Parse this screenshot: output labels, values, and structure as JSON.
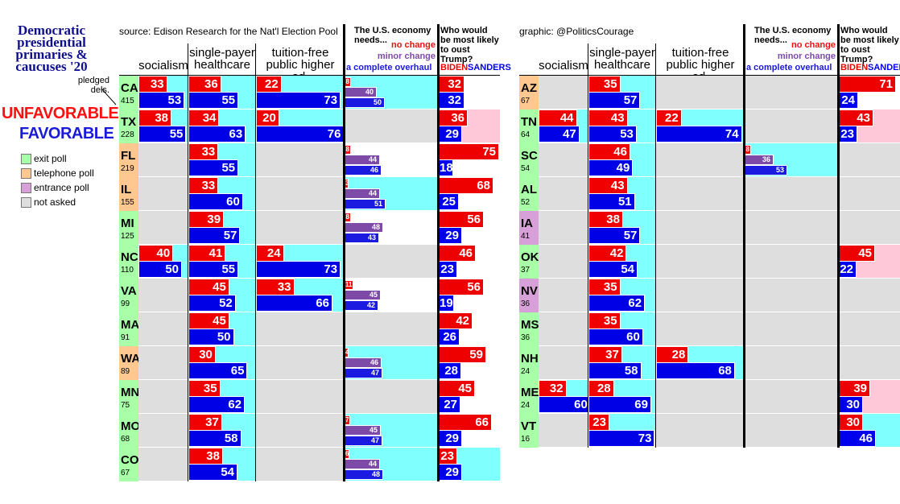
{
  "title": [
    "Democratic",
    "presidential",
    "primaries &",
    "caucuses '20"
  ],
  "pledged_label": [
    "pledged",
    "dels."
  ],
  "legend": {
    "unfavorable": "UNFAVORABLE",
    "favorable": "FAVORABLE",
    "items": [
      {
        "label": "exit poll",
        "color": "#a8ffa8"
      },
      {
        "label": "telephone poll",
        "color": "#ffc890"
      },
      {
        "label": "entrance poll",
        "color": "#d8a0d8"
      },
      {
        "label": "not asked",
        "color": "#dedede"
      }
    ]
  },
  "source": "source: Edison Research for the Nat'l Election Pool",
  "credit": "graphic: @PoliticsCourage",
  "columns": [
    "socialism",
    "single-payer healthcare",
    "tuition-free public higher ed."
  ],
  "economy_header": {
    "question": "The U.S. economy needs...",
    "no_change": "no change",
    "minor_change": "minor change",
    "overhaul": "a complete overhaul"
  },
  "trump_header": {
    "question": "Who would be most likely to oust Trump?",
    "biden": "BIDEN",
    "sanders": "SANDERS"
  },
  "colors": {
    "unfavorable": "#f00000",
    "favorable": "#0000e6",
    "no_change": "#ee1111",
    "minor_change": "#7e4aa8",
    "overhaul": "#1a1ae0",
    "biden": "#ee0000",
    "sanders": "#0000ee",
    "exit": "#a8ffa8",
    "telephone": "#ffc890",
    "entrance": "#d8a0d8",
    "not_asked": "#dedede",
    "cyan": "#80ffff",
    "pink": "#ffc8d8",
    "white": "#ffffff"
  },
  "chart_data": {
    "type": "bar",
    "title": "Democratic presidential primaries & caucuses '20",
    "units": "percent",
    "scale_max": 100,
    "states": [
      {
        "code": "CA",
        "dels": "415",
        "poll": "exit",
        "socialism": [
          33,
          53
        ],
        "healthcare": [
          36,
          55
        ],
        "tuition": [
          22,
          73
        ],
        "economy": [
          8,
          40,
          50
        ],
        "trump": [
          32,
          32
        ],
        "bg": [
          "cyan",
          "cyan",
          "cyan",
          "cyan",
          "white"
        ]
      },
      {
        "code": "TX",
        "dels": "228",
        "poll": "exit",
        "socialism": [
          38,
          55
        ],
        "healthcare": [
          34,
          63
        ],
        "tuition": [
          20,
          76
        ],
        "economy": null,
        "trump": [
          36,
          29
        ],
        "bg": [
          "cyan",
          "cyan",
          "cyan",
          "gray",
          "pink"
        ]
      },
      {
        "code": "FL",
        "dels": "219",
        "poll": "telephone",
        "socialism": null,
        "healthcare": [
          33,
          55
        ],
        "tuition": null,
        "economy": [
          8,
          44,
          46
        ],
        "trump": [
          75,
          18
        ],
        "bg": [
          "gray",
          "cyan",
          "gray",
          "white",
          "white"
        ]
      },
      {
        "code": "IL",
        "dels": "155",
        "poll": "telephone",
        "socialism": null,
        "healthcare": [
          33,
          60
        ],
        "tuition": null,
        "economy": [
          3,
          44,
          51
        ],
        "trump": [
          68,
          25
        ],
        "bg": [
          "gray",
          "cyan",
          "gray",
          "cyan",
          "white"
        ]
      },
      {
        "code": "MI",
        "dels": "125",
        "poll": "exit",
        "socialism": null,
        "healthcare": [
          39,
          57
        ],
        "tuition": null,
        "economy": [
          8,
          48,
          43
        ],
        "trump": [
          56,
          29
        ],
        "bg": [
          "gray",
          "cyan",
          "gray",
          "white",
          "white"
        ]
      },
      {
        "code": "NC",
        "dels": "110",
        "poll": "exit",
        "socialism": [
          40,
          50
        ],
        "healthcare": [
          41,
          55
        ],
        "tuition": [
          24,
          73
        ],
        "economy": null,
        "trump": [
          46,
          23
        ],
        "bg": [
          "cyan",
          "cyan",
          "cyan",
          "gray",
          "white"
        ]
      },
      {
        "code": "VA",
        "dels": "99",
        "poll": "exit",
        "socialism": null,
        "healthcare": [
          45,
          52
        ],
        "tuition": [
          33,
          66
        ],
        "economy": [
          11,
          45,
          42
        ],
        "trump": [
          56,
          19
        ],
        "bg": [
          "gray",
          "cyan",
          "cyan",
          "white",
          "white"
        ]
      },
      {
        "code": "MA",
        "dels": "91",
        "poll": "exit",
        "socialism": null,
        "healthcare": [
          45,
          50
        ],
        "tuition": null,
        "economy": null,
        "trump": [
          42,
          26
        ],
        "bg": [
          "gray",
          "cyan",
          "gray",
          "gray",
          "white"
        ]
      },
      {
        "code": "WA",
        "dels": "89",
        "poll": "telephone",
        "socialism": null,
        "healthcare": [
          30,
          65
        ],
        "tuition": null,
        "economy": [
          4,
          46,
          47
        ],
        "trump": [
          59,
          28
        ],
        "bg": [
          "gray",
          "cyan",
          "gray",
          "cyan",
          "white"
        ]
      },
      {
        "code": "MN",
        "dels": "75",
        "poll": "exit",
        "socialism": null,
        "healthcare": [
          35,
          62
        ],
        "tuition": null,
        "economy": null,
        "trump": [
          45,
          27
        ],
        "bg": [
          "gray",
          "cyan",
          "gray",
          "gray",
          "white"
        ]
      },
      {
        "code": "MO",
        "dels": "68",
        "poll": "exit",
        "socialism": null,
        "healthcare": [
          37,
          58
        ],
        "tuition": null,
        "economy": [
          7,
          45,
          47
        ],
        "trump": [
          66,
          29
        ],
        "bg": [
          "gray",
          "cyan",
          "gray",
          "cyan",
          "white"
        ]
      },
      {
        "code": "CO",
        "dels": "67",
        "poll": "exit",
        "socialism": null,
        "healthcare": [
          38,
          54
        ],
        "tuition": null,
        "economy": [
          6,
          44,
          48
        ],
        "trump": [
          23,
          29
        ],
        "bg": [
          "gray",
          "cyan",
          "gray",
          "cyan",
          "cyan"
        ]
      },
      {
        "code": "AZ",
        "dels": "67",
        "poll": "telephone",
        "socialism": null,
        "healthcare": [
          35,
          57
        ],
        "tuition": null,
        "economy": null,
        "trump": [
          71,
          24
        ],
        "bg": [
          "gray",
          "cyan",
          "gray",
          "gray",
          "white"
        ]
      },
      {
        "code": "TN",
        "dels": "64",
        "poll": "exit",
        "socialism": [
          44,
          47
        ],
        "healthcare": [
          43,
          53
        ],
        "tuition": [
          22,
          74
        ],
        "economy": null,
        "trump": [
          43,
          23
        ],
        "bg": [
          "cyan",
          "cyan",
          "cyan",
          "gray",
          "pink"
        ]
      },
      {
        "code": "SC",
        "dels": "54",
        "poll": "exit",
        "socialism": null,
        "healthcare": [
          46,
          49
        ],
        "tuition": null,
        "economy": [
          8,
          36,
          53
        ],
        "trump": null,
        "bg": [
          "gray",
          "cyan",
          "gray",
          "cyan",
          "gray"
        ]
      },
      {
        "code": "AL",
        "dels": "52",
        "poll": "exit",
        "socialism": null,
        "healthcare": [
          43,
          51
        ],
        "tuition": null,
        "economy": null,
        "trump": null,
        "bg": [
          "gray",
          "cyan",
          "gray",
          "gray",
          "gray"
        ]
      },
      {
        "code": "IA",
        "dels": "41",
        "poll": "entrance",
        "socialism": null,
        "healthcare": [
          38,
          57
        ],
        "tuition": null,
        "economy": null,
        "trump": null,
        "bg": [
          "gray",
          "cyan",
          "gray",
          "gray",
          "gray"
        ]
      },
      {
        "code": "OK",
        "dels": "37",
        "poll": "exit",
        "socialism": null,
        "healthcare": [
          42,
          54
        ],
        "tuition": null,
        "economy": null,
        "trump": [
          45,
          22
        ],
        "bg": [
          "gray",
          "cyan",
          "gray",
          "gray",
          "pink"
        ]
      },
      {
        "code": "NV",
        "dels": "36",
        "poll": "entrance",
        "socialism": null,
        "healthcare": [
          35,
          62
        ],
        "tuition": null,
        "economy": null,
        "trump": null,
        "bg": [
          "gray",
          "cyan",
          "gray",
          "gray",
          "gray"
        ]
      },
      {
        "code": "MS",
        "dels": "36",
        "poll": "exit",
        "socialism": null,
        "healthcare": [
          35,
          60
        ],
        "tuition": null,
        "economy": null,
        "trump": null,
        "bg": [
          "gray",
          "cyan",
          "gray",
          "gray",
          "gray"
        ]
      },
      {
        "code": "NH",
        "dels": "24",
        "poll": "exit",
        "socialism": null,
        "healthcare": [
          37,
          58
        ],
        "tuition": [
          28,
          68
        ],
        "economy": null,
        "trump": null,
        "bg": [
          "gray",
          "cyan",
          "cyan",
          "gray",
          "gray"
        ]
      },
      {
        "code": "ME",
        "dels": "24",
        "poll": "exit",
        "socialism": [
          32,
          60
        ],
        "healthcare": [
          28,
          69
        ],
        "tuition": null,
        "economy": null,
        "trump": [
          39,
          30
        ],
        "bg": [
          "cyan",
          "cyan",
          "gray",
          "gray",
          "pink"
        ]
      },
      {
        "code": "VT",
        "dels": "16",
        "poll": "exit",
        "socialism": null,
        "healthcare": [
          23,
          73
        ],
        "tuition": null,
        "economy": null,
        "trump": [
          30,
          46
        ],
        "bg": [
          "gray",
          "cyan",
          "gray",
          "gray",
          "cyan"
        ]
      }
    ]
  }
}
